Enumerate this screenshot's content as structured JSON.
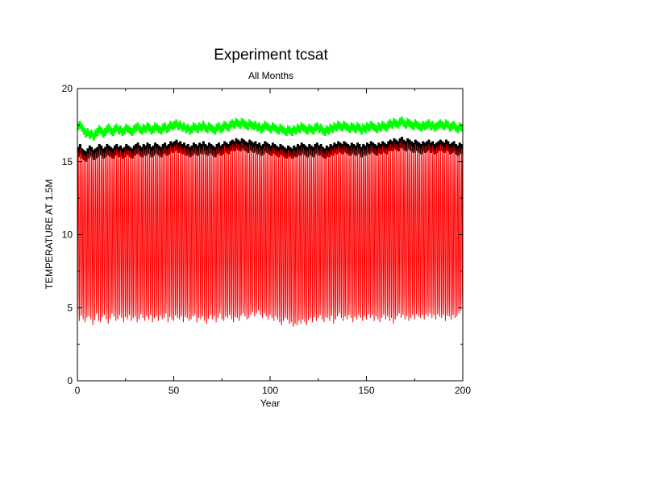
{
  "chart_data": {
    "type": "line",
    "title": "Experiment tcsat",
    "subtitle": "All Months",
    "xlabel": "Year",
    "ylabel": "TEMPERATURE AT 1.5M",
    "xlim": [
      0,
      200
    ],
    "ylim": [
      0,
      20
    ],
    "x_ticks": [
      0,
      50,
      100,
      150,
      200
    ],
    "y_ticks": [
      0,
      5,
      10,
      15,
      20
    ],
    "grid": false,
    "legend": "none",
    "samples_per_year": 12,
    "series": [
      {
        "color": "#ff0000",
        "style": "monthly seasonal cycle",
        "trough_per_year": [
          4.3,
          4.1,
          4.6,
          4.2,
          4.0,
          4.5,
          4.4,
          4.2,
          3.8,
          4.3,
          4.6,
          4.1,
          4.0,
          4.4,
          4.5,
          4.2,
          3.9,
          4.3,
          4.6,
          4.4,
          4.1,
          4.2,
          4.5,
          4.3,
          4.0,
          4.4,
          4.2,
          4.5,
          4.1,
          4.3,
          4.4,
          4.0,
          4.2,
          4.6,
          4.3,
          4.1,
          4.4,
          4.2,
          4.5,
          4.0,
          4.3,
          4.4,
          4.1,
          4.5,
          4.2,
          4.3,
          4.6,
          4.0,
          4.4,
          4.2,
          4.1,
          4.5,
          4.3,
          4.2,
          4.4,
          4.0,
          4.6,
          4.3,
          4.1,
          4.2,
          4.4,
          4.5,
          4.0,
          4.3,
          4.2,
          4.4,
          4.1,
          3.9,
          4.3,
          4.5,
          4.2,
          4.4,
          4.0,
          4.3,
          4.6,
          4.2,
          4.1,
          4.4,
          4.3,
          4.5,
          4.2,
          4.0,
          4.4,
          4.3,
          4.1,
          4.5,
          4.6,
          4.4,
          4.2,
          4.3,
          4.5,
          4.7,
          4.4,
          4.6,
          4.8,
          4.5,
          4.3,
          4.6,
          4.4,
          4.2,
          4.5,
          4.3,
          4.1,
          4.4,
          4.2,
          4.0,
          3.8,
          4.1,
          4.3,
          4.2,
          3.9,
          4.0,
          3.7,
          3.9,
          3.8,
          4.1,
          3.9,
          4.2,
          4.0,
          3.8,
          4.2,
          4.3,
          4.0,
          4.4,
          4.1,
          4.3,
          4.5,
          4.2,
          4.0,
          4.4,
          4.3,
          4.1,
          4.5,
          3.9,
          4.2,
          4.4,
          4.6,
          4.3,
          4.1,
          4.4,
          4.2,
          4.5,
          4.3,
          4.0,
          4.4,
          4.2,
          4.5,
          4.3,
          4.1,
          4.4,
          4.2,
          4.6,
          4.3,
          4.5,
          4.1,
          4.4,
          4.2,
          4.0,
          4.3,
          4.5,
          4.2,
          4.4,
          4.1,
          4.3,
          3.9,
          4.2,
          4.4,
          4.6,
          4.3,
          4.5,
          4.2,
          4.4,
          4.1,
          4.3,
          4.5,
          4.2,
          4.6,
          4.4,
          4.3,
          4.5,
          4.2,
          4.7,
          4.4,
          4.6,
          4.3,
          4.5,
          4.2,
          4.6,
          4.4,
          4.3,
          4.5,
          4.1,
          4.6,
          4.4,
          4.2,
          4.5,
          4.3,
          4.4,
          4.6,
          4.8
        ]
      },
      {
        "color": "#000000",
        "style": "upper envelope",
        "values_per_year": [
          16.0,
          16.2,
          15.9,
          15.8,
          15.7,
          15.9,
          16.1,
          16.0,
          15.8,
          15.9,
          16.0,
          16.2,
          16.1,
          15.9,
          16.0,
          16.2,
          16.1,
          16.0,
          15.9,
          16.1,
          16.2,
          16.0,
          16.1,
          15.9,
          16.0,
          16.2,
          16.1,
          16.0,
          15.9,
          16.1,
          16.2,
          16.3,
          16.1,
          16.0,
          16.2,
          16.1,
          16.3,
          16.2,
          16.0,
          16.1,
          16.3,
          16.2,
          16.1,
          16.0,
          16.2,
          16.3,
          16.1,
          16.2,
          16.4,
          16.3,
          16.4,
          16.5,
          16.3,
          16.4,
          16.2,
          16.3,
          16.1,
          16.2,
          16.0,
          16.1,
          16.3,
          16.2,
          16.1,
          16.3,
          16.2,
          16.4,
          16.2,
          16.1,
          16.3,
          16.2,
          16.1,
          16.0,
          16.2,
          16.3,
          16.1,
          16.2,
          16.4,
          16.3,
          16.2,
          16.4,
          16.5,
          16.4,
          16.6,
          16.5,
          16.4,
          16.6,
          16.5,
          16.4,
          16.3,
          16.5,
          16.4,
          16.3,
          16.4,
          16.2,
          16.3,
          16.1,
          16.2,
          16.4,
          16.3,
          16.2,
          16.1,
          16.3,
          16.2,
          16.1,
          16.0,
          16.2,
          16.1,
          16.0,
          15.9,
          16.1,
          16.0,
          15.9,
          16.1,
          16.0,
          16.2,
          16.1,
          16.3,
          16.2,
          16.1,
          16.0,
          16.2,
          16.1,
          16.0,
          16.2,
          16.3,
          16.1,
          16.2,
          16.0,
          15.9,
          16.1,
          16.0,
          16.2,
          16.1,
          16.3,
          16.2,
          16.4,
          16.3,
          16.2,
          16.4,
          16.3,
          16.2,
          16.1,
          16.3,
          16.2,
          16.1,
          16.3,
          16.2,
          16.0,
          16.2,
          16.1,
          16.3,
          16.2,
          16.4,
          16.3,
          16.2,
          16.1,
          16.3,
          16.2,
          16.4,
          16.3,
          16.2,
          16.4,
          16.5,
          16.4,
          16.6,
          16.5,
          16.4,
          16.6,
          16.7,
          16.5,
          16.4,
          16.6,
          16.5,
          16.4,
          16.3,
          16.5,
          16.4,
          16.3,
          16.2,
          16.4,
          16.3,
          16.4,
          16.5,
          16.3,
          16.4,
          16.2,
          16.3,
          16.4,
          16.5,
          16.4,
          16.3,
          16.5,
          16.4,
          16.2,
          16.3,
          16.4,
          16.2,
          16.1,
          16.3,
          16.2
        ]
      },
      {
        "color": "#00ff00",
        "style": "upper envelope",
        "values_per_year": [
          17.4,
          17.5,
          17.3,
          17.1,
          16.9,
          17.0,
          16.8,
          16.9,
          16.7,
          16.9,
          17.0,
          17.2,
          17.1,
          16.9,
          17.0,
          17.2,
          17.3,
          17.1,
          17.0,
          17.2,
          17.3,
          17.1,
          17.2,
          17.0,
          17.1,
          17.3,
          17.2,
          17.1,
          17.0,
          17.2,
          17.3,
          17.4,
          17.2,
          17.1,
          17.3,
          17.2,
          17.4,
          17.3,
          17.1,
          17.2,
          17.4,
          17.3,
          17.2,
          17.1,
          17.3,
          17.4,
          17.2,
          17.3,
          17.5,
          17.4,
          17.5,
          17.6,
          17.4,
          17.5,
          17.3,
          17.4,
          17.2,
          17.3,
          17.1,
          17.2,
          17.4,
          17.3,
          17.2,
          17.4,
          17.3,
          17.5,
          17.3,
          17.2,
          17.4,
          17.3,
          17.2,
          17.1,
          17.3,
          17.4,
          17.2,
          17.3,
          17.5,
          17.4,
          17.3,
          17.5,
          17.6,
          17.5,
          17.7,
          17.6,
          17.5,
          17.7,
          17.6,
          17.5,
          17.4,
          17.6,
          17.5,
          17.4,
          17.5,
          17.3,
          17.4,
          17.2,
          17.3,
          17.5,
          17.4,
          17.3,
          17.2,
          17.4,
          17.3,
          17.2,
          17.1,
          17.3,
          17.2,
          17.1,
          17.0,
          17.2,
          17.1,
          17.0,
          17.2,
          17.1,
          17.3,
          17.2,
          17.4,
          17.3,
          17.2,
          17.1,
          17.3,
          17.2,
          17.1,
          17.3,
          17.4,
          17.2,
          17.3,
          17.1,
          17.0,
          17.2,
          17.1,
          17.3,
          17.2,
          17.4,
          17.3,
          17.5,
          17.4,
          17.3,
          17.5,
          17.4,
          17.3,
          17.2,
          17.4,
          17.3,
          17.2,
          17.4,
          17.3,
          17.1,
          17.3,
          17.2,
          17.4,
          17.3,
          17.5,
          17.4,
          17.3,
          17.2,
          17.4,
          17.3,
          17.5,
          17.4,
          17.3,
          17.5,
          17.6,
          17.5,
          17.7,
          17.6,
          17.5,
          17.7,
          17.8,
          17.6,
          17.5,
          17.7,
          17.6,
          17.5,
          17.4,
          17.6,
          17.5,
          17.4,
          17.3,
          17.5,
          17.4,
          17.5,
          17.6,
          17.4,
          17.5,
          17.3,
          17.4,
          17.5,
          17.6,
          17.5,
          17.4,
          17.6,
          17.5,
          17.3,
          17.4,
          17.5,
          17.3,
          17.2,
          17.4,
          17.3
        ]
      }
    ]
  }
}
